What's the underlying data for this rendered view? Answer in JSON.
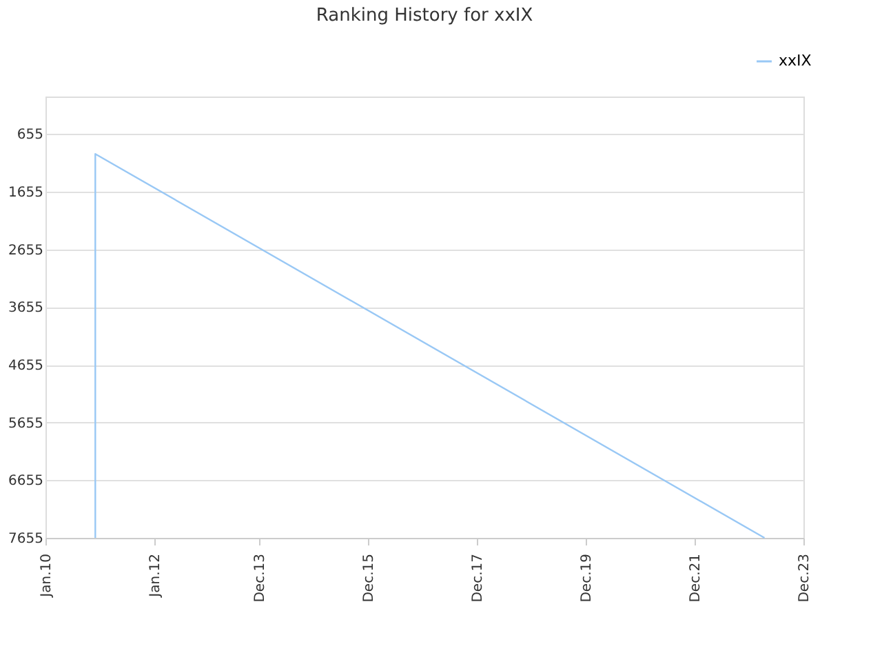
{
  "chart_data": {
    "type": "line",
    "title": "Ranking History for xxIX",
    "x": [
      "2010-12-01",
      "2010-12-01",
      "2023-03-15"
    ],
    "series": [
      {
        "name": "xxIX",
        "color": "#99c8f5",
        "values": [
          7655,
          1000,
          7655
        ]
      }
    ],
    "xlim": [
      "2010-01-01",
      "2023-12-01"
    ],
    "xticks": [
      {
        "value": "2010-01-01",
        "label": "Jan.10"
      },
      {
        "value": "2012-01-01",
        "label": "Jan.12"
      },
      {
        "value": "2013-12-01",
        "label": "Dec.13"
      },
      {
        "value": "2015-12-01",
        "label": "Dec.15"
      },
      {
        "value": "2017-12-01",
        "label": "Dec.17"
      },
      {
        "value": "2019-12-01",
        "label": "Dec.19"
      },
      {
        "value": "2021-12-01",
        "label": "Dec.21"
      },
      {
        "value": "2023-12-01",
        "label": "Dec.23"
      }
    ],
    "ylim": [
      7655,
      5
    ],
    "yticks": [
      655,
      1655,
      2655,
      3655,
      4655,
      5655,
      6655,
      7655
    ],
    "grid": "y",
    "legend": "top right",
    "marker": "none",
    "line_style": "solid"
  }
}
